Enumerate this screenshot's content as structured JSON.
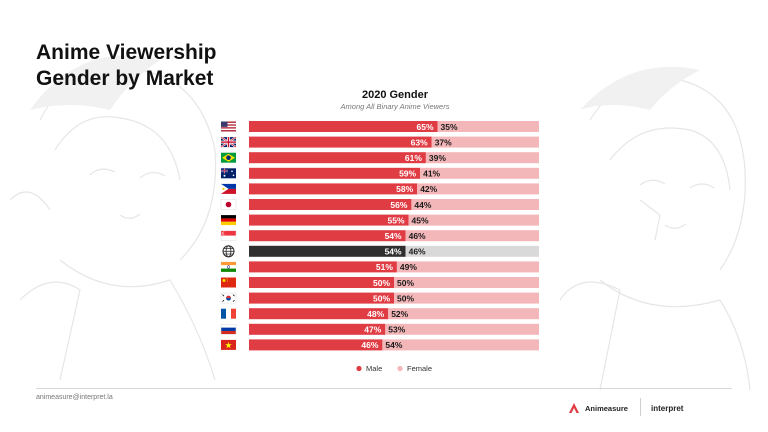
{
  "slide": {
    "title_line1": "Anime Viewership",
    "title_line2": "Gender by Market",
    "email": "animeasure@interpret.la",
    "brand_name": "Animeasure",
    "partner_name": "interpret"
  },
  "colors": {
    "male": "#e03c44",
    "female": "#f4b7b9",
    "global_male": "#2f2f2f",
    "global_female": "#d9d9d9"
  },
  "chart_data": {
    "type": "bar",
    "orientation": "horizontal",
    "stacked": true,
    "title": "2020 Gender",
    "subtitle": "Among All Binary Anime Viewers",
    "categories": [
      "US",
      "UK",
      "Brazil",
      "Australia",
      "Philippines",
      "Japan",
      "Germany",
      "Singapore",
      "Global",
      "India",
      "China",
      "South Korea",
      "France",
      "Russia",
      "Vietnam"
    ],
    "flag_icons": [
      "us-flag-icon",
      "uk-flag-icon",
      "brazil-flag-icon",
      "australia-flag-icon",
      "philippines-flag-icon",
      "japan-flag-icon",
      "germany-flag-icon",
      "singapore-flag-icon",
      "globe-icon",
      "india-flag-icon",
      "china-flag-icon",
      "south-korea-flag-icon",
      "france-flag-icon",
      "russia-flag-icon",
      "vietnam-flag-icon"
    ],
    "highlight_category": "Global",
    "series": [
      {
        "name": "Male",
        "values": [
          65,
          63,
          61,
          59,
          58,
          56,
          55,
          54,
          54,
          51,
          50,
          50,
          48,
          47,
          46
        ]
      },
      {
        "name": "Female",
        "values": [
          35,
          37,
          39,
          41,
          42,
          44,
          45,
          46,
          46,
          49,
          50,
          50,
          52,
          53,
          54
        ]
      }
    ],
    "legend": [
      "Male",
      "Female"
    ],
    "legend_position": "bottom",
    "xlim": [
      0,
      100
    ],
    "value_suffix": "%"
  }
}
